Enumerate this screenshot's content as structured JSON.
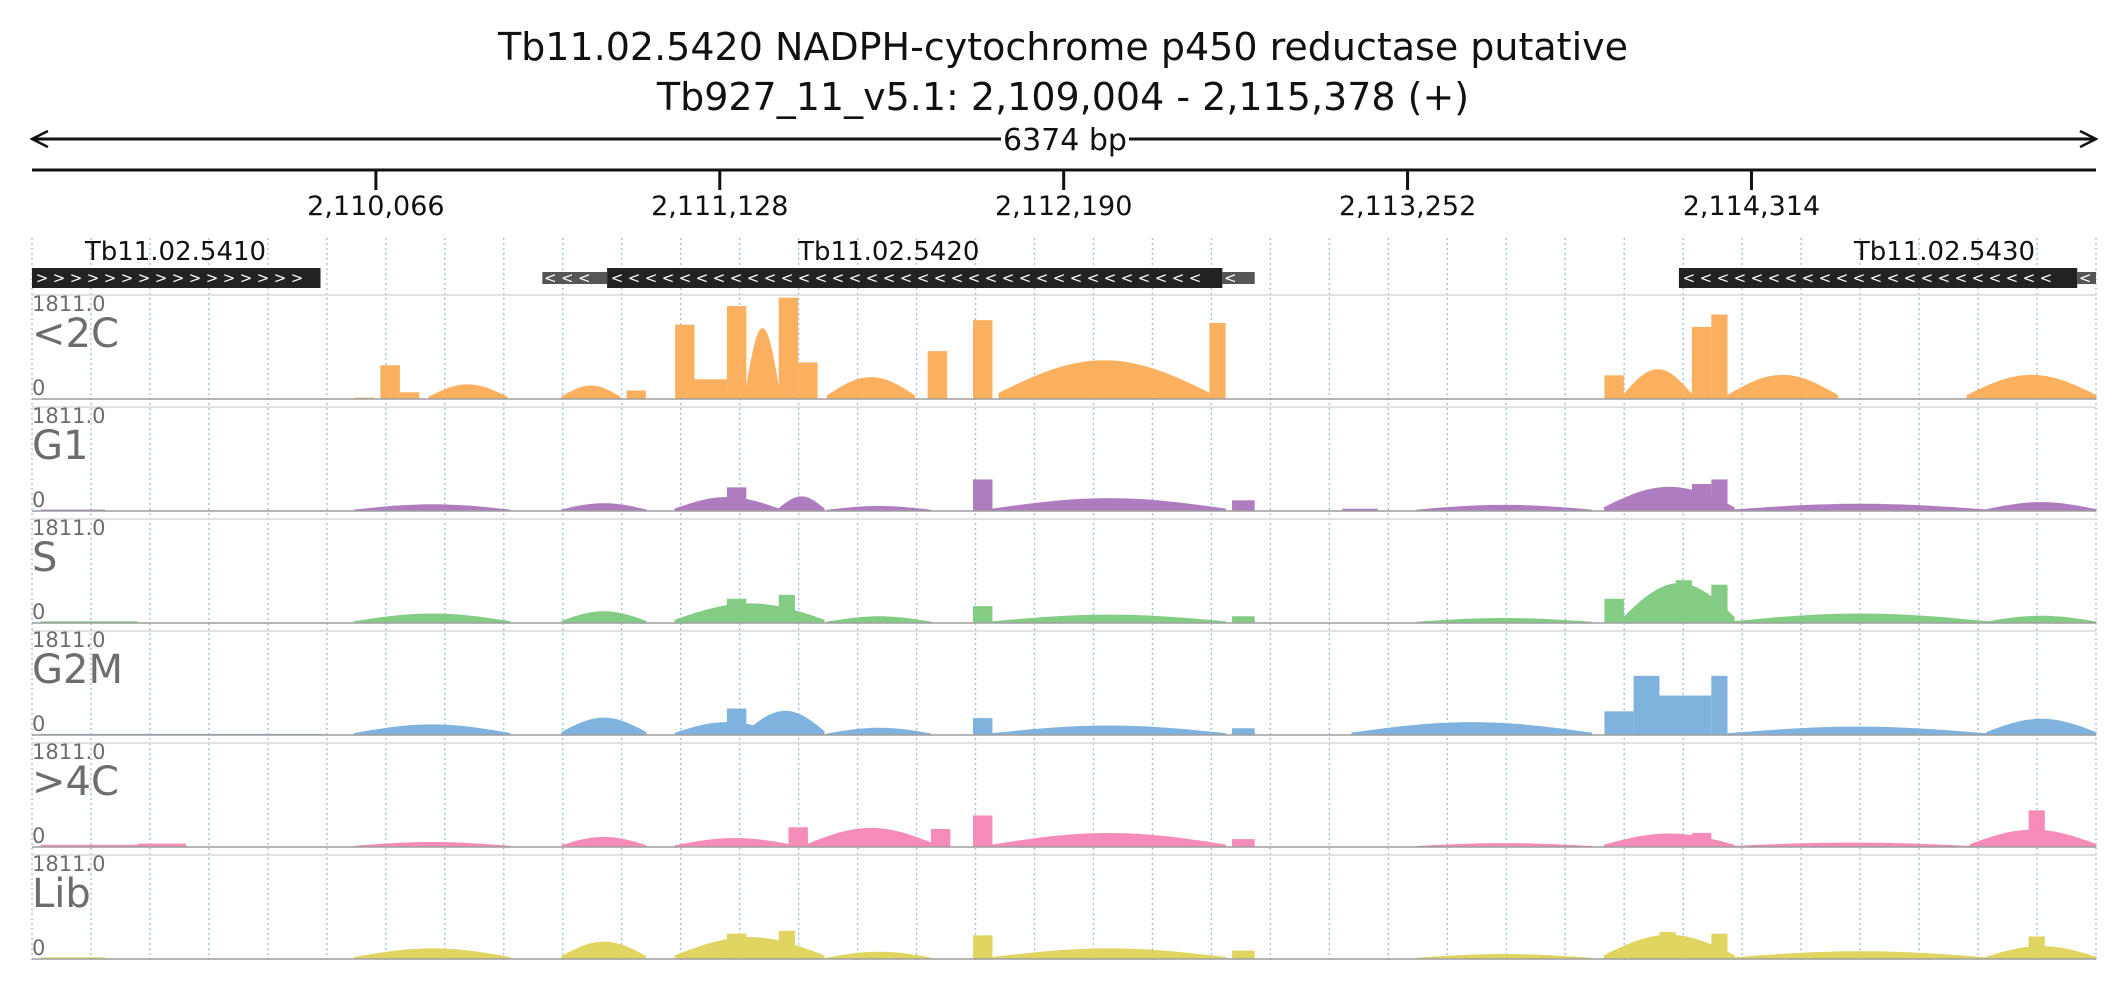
{
  "chart_data": {
    "type": "area",
    "title": "Tb11.02.5420  NADPH-cytochrome p450 reductase  putative",
    "subtitle": "Tb927_11_v5.1: 2,109,004 - 2,115,378 (+)",
    "region": {
      "chromosome": "Tb927_11_v5.1",
      "start": 2109004,
      "end": 2115378,
      "strand": "+"
    },
    "length_label": "6374 bp",
    "ticks": [
      {
        "pos": 2110066,
        "label": "2,110,066"
      },
      {
        "pos": 2111128,
        "label": "2,111,128"
      },
      {
        "pos": 2112190,
        "label": "2,112,190"
      },
      {
        "pos": 2113252,
        "label": "2,113,252"
      },
      {
        "pos": 2114314,
        "label": "2,114,314"
      }
    ],
    "genes": [
      {
        "name": "Tb11.02.5410",
        "strand": "+",
        "start": 2109004,
        "end": 2109895,
        "utr_segments": [],
        "label_pos": 2109447
      },
      {
        "name": "Tb11.02.5420",
        "strand": "-",
        "start": 2110780,
        "end": 2112680,
        "utr_segments": [
          [
            2110580,
            2110780
          ],
          [
            2112680,
            2112780
          ]
        ],
        "label_pos": 2111650
      },
      {
        "name": "Tb11.02.5430",
        "strand": "-",
        "start": 2114090,
        "end": 2115320,
        "utr_segments": [
          [
            2115320,
            2115378
          ]
        ],
        "label_pos": 2114910
      }
    ],
    "y_max": 1811.0,
    "y_max_label": "1811.0",
    "y_min_label": "0",
    "tracks": [
      {
        "name": "<2C",
        "color": "#fbb05f",
        "regions": [
          {
            "x0": 2110000,
            "x1": 2110060,
            "v": 25
          },
          {
            "x0": 2110080,
            "x1": 2110140,
            "v": 600
          },
          {
            "x0": 2110140,
            "x1": 2110200,
            "v": 120
          },
          {
            "x0": 2110230,
            "x1": 2110470,
            "v": 250,
            "shape": "hump"
          },
          {
            "x0": 2110640,
            "x1": 2110820,
            "v": 230,
            "shape": "hump"
          },
          {
            "x0": 2110840,
            "x1": 2110900,
            "v": 150
          },
          {
            "x0": 2110990,
            "x1": 2111050,
            "v": 1320
          },
          {
            "x0": 2111050,
            "x1": 2111150,
            "v": 350
          },
          {
            "x0": 2111150,
            "x1": 2111210,
            "v": 1650
          },
          {
            "x0": 2111210,
            "x1": 2111310,
            "v": 1250,
            "shape": "hump"
          },
          {
            "x0": 2111310,
            "x1": 2111370,
            "v": 1800
          },
          {
            "x0": 2111370,
            "x1": 2111430,
            "v": 650
          },
          {
            "x0": 2111460,
            "x1": 2111730,
            "v": 380,
            "shape": "hump"
          },
          {
            "x0": 2111770,
            "x1": 2111830,
            "v": 850
          },
          {
            "x0": 2111910,
            "x1": 2111970,
            "v": 1400
          },
          {
            "x0": 2111990,
            "x1": 2112640,
            "v": 680,
            "shape": "hump"
          },
          {
            "x0": 2112640,
            "x1": 2112690,
            "v": 1350
          },
          {
            "x0": 2113860,
            "x1": 2113920,
            "v": 420
          },
          {
            "x0": 2113920,
            "x1": 2114130,
            "v": 520,
            "shape": "hump"
          },
          {
            "x0": 2114130,
            "x1": 2114190,
            "v": 1280
          },
          {
            "x0": 2114190,
            "x1": 2114240,
            "v": 1500
          },
          {
            "x0": 2114240,
            "x1": 2114580,
            "v": 420,
            "shape": "hump"
          },
          {
            "x0": 2114980,
            "x1": 2115378,
            "v": 420,
            "shape": "hump"
          }
        ]
      },
      {
        "name": "G1",
        "color": "#b07cc0",
        "regions": [
          {
            "x0": 2109030,
            "x1": 2109230,
            "v": 25
          },
          {
            "x0": 2110000,
            "x1": 2110480,
            "v": 110,
            "shape": "hump"
          },
          {
            "x0": 2110640,
            "x1": 2110900,
            "v": 130,
            "shape": "hump"
          },
          {
            "x0": 2110990,
            "x1": 2111310,
            "v": 240,
            "shape": "hump"
          },
          {
            "x0": 2111150,
            "x1": 2111210,
            "v": 420
          },
          {
            "x0": 2111310,
            "x1": 2111450,
            "v": 250,
            "shape": "hump"
          },
          {
            "x0": 2111460,
            "x1": 2111780,
            "v": 80,
            "shape": "hump"
          },
          {
            "x0": 2111910,
            "x1": 2111970,
            "v": 560
          },
          {
            "x0": 2111970,
            "x1": 2112690,
            "v": 220,
            "shape": "hump"
          },
          {
            "x0": 2112710,
            "x1": 2112780,
            "v": 190
          },
          {
            "x0": 2113050,
            "x1": 2113160,
            "v": 40
          },
          {
            "x0": 2113280,
            "x1": 2113820,
            "v": 100,
            "shape": "hump"
          },
          {
            "x0": 2113860,
            "x1": 2114260,
            "v": 420,
            "shape": "hump"
          },
          {
            "x0": 2114130,
            "x1": 2114190,
            "v": 480
          },
          {
            "x0": 2114190,
            "x1": 2114240,
            "v": 560
          },
          {
            "x0": 2114260,
            "x1": 2115040,
            "v": 120,
            "shape": "hump"
          },
          {
            "x0": 2115040,
            "x1": 2115378,
            "v": 150,
            "shape": "hump"
          }
        ]
      },
      {
        "name": "S",
        "color": "#84cc84",
        "regions": [
          {
            "x0": 2109030,
            "x1": 2109330,
            "v": 30
          },
          {
            "x0": 2110000,
            "x1": 2110480,
            "v": 160,
            "shape": "hump"
          },
          {
            "x0": 2110640,
            "x1": 2110900,
            "v": 200,
            "shape": "hump"
          },
          {
            "x0": 2110990,
            "x1": 2111450,
            "v": 340,
            "shape": "hump"
          },
          {
            "x0": 2111150,
            "x1": 2111210,
            "v": 430
          },
          {
            "x0": 2111310,
            "x1": 2111360,
            "v": 500
          },
          {
            "x0": 2111460,
            "x1": 2111780,
            "v": 110,
            "shape": "hump"
          },
          {
            "x0": 2111910,
            "x1": 2111970,
            "v": 300
          },
          {
            "x0": 2111970,
            "x1": 2112690,
            "v": 140,
            "shape": "hump"
          },
          {
            "x0": 2112710,
            "x1": 2112780,
            "v": 120
          },
          {
            "x0": 2113280,
            "x1": 2113820,
            "v": 80,
            "shape": "hump"
          },
          {
            "x0": 2113860,
            "x1": 2113920,
            "v": 430
          },
          {
            "x0": 2113920,
            "x1": 2114260,
            "v": 700,
            "shape": "hump"
          },
          {
            "x0": 2114080,
            "x1": 2114130,
            "v": 760
          },
          {
            "x0": 2114190,
            "x1": 2114240,
            "v": 680
          },
          {
            "x0": 2114260,
            "x1": 2115040,
            "v": 160,
            "shape": "hump"
          },
          {
            "x0": 2115040,
            "x1": 2115378,
            "v": 120,
            "shape": "hump"
          }
        ]
      },
      {
        "name": "G2M",
        "color": "#7fb3de",
        "regions": [
          {
            "x0": 2109030,
            "x1": 2109900,
            "v": 20
          },
          {
            "x0": 2110000,
            "x1": 2110480,
            "v": 180,
            "shape": "hump"
          },
          {
            "x0": 2110640,
            "x1": 2110900,
            "v": 300,
            "shape": "hump"
          },
          {
            "x0": 2110990,
            "x1": 2111310,
            "v": 220,
            "shape": "hump"
          },
          {
            "x0": 2111150,
            "x1": 2111210,
            "v": 470
          },
          {
            "x0": 2111210,
            "x1": 2111450,
            "v": 420,
            "shape": "hump"
          },
          {
            "x0": 2111460,
            "x1": 2111780,
            "v": 120,
            "shape": "hump"
          },
          {
            "x0": 2111910,
            "x1": 2111970,
            "v": 300
          },
          {
            "x0": 2111970,
            "x1": 2112690,
            "v": 160,
            "shape": "hump"
          },
          {
            "x0": 2112710,
            "x1": 2112780,
            "v": 120
          },
          {
            "x0": 2113080,
            "x1": 2113820,
            "v": 220,
            "shape": "hump"
          },
          {
            "x0": 2113860,
            "x1": 2113950,
            "v": 420
          },
          {
            "x0": 2113950,
            "x1": 2114030,
            "v": 1050
          },
          {
            "x0": 2114030,
            "x1": 2114190,
            "v": 700
          },
          {
            "x0": 2114190,
            "x1": 2114240,
            "v": 1050
          },
          {
            "x0": 2114240,
            "x1": 2115040,
            "v": 140,
            "shape": "hump"
          },
          {
            "x0": 2115040,
            "x1": 2115378,
            "v": 280,
            "shape": "hump"
          }
        ]
      },
      {
        "name": ">4C",
        "color": "#f58bb8",
        "regions": [
          {
            "x0": 2109030,
            "x1": 2109330,
            "v": 40
          },
          {
            "x0": 2109330,
            "x1": 2109480,
            "v": 60
          },
          {
            "x0": 2110000,
            "x1": 2110480,
            "v": 80,
            "shape": "hump"
          },
          {
            "x0": 2110640,
            "x1": 2110900,
            "v": 170,
            "shape": "hump"
          },
          {
            "x0": 2110990,
            "x1": 2111360,
            "v": 150,
            "shape": "hump"
          },
          {
            "x0": 2111340,
            "x1": 2111400,
            "v": 350
          },
          {
            "x0": 2111400,
            "x1": 2111790,
            "v": 330,
            "shape": "hump"
          },
          {
            "x0": 2111780,
            "x1": 2111840,
            "v": 320
          },
          {
            "x0": 2111910,
            "x1": 2111970,
            "v": 560
          },
          {
            "x0": 2111970,
            "x1": 2112690,
            "v": 240,
            "shape": "hump"
          },
          {
            "x0": 2112710,
            "x1": 2112780,
            "v": 140
          },
          {
            "x0": 2113280,
            "x1": 2113820,
            "v": 60,
            "shape": "hump"
          },
          {
            "x0": 2113860,
            "x1": 2114260,
            "v": 230,
            "shape": "hump"
          },
          {
            "x0": 2114130,
            "x1": 2114190,
            "v": 250
          },
          {
            "x0": 2114260,
            "x1": 2114990,
            "v": 70,
            "shape": "hump"
          },
          {
            "x0": 2114990,
            "x1": 2115378,
            "v": 300,
            "shape": "hump"
          },
          {
            "x0": 2115170,
            "x1": 2115220,
            "v": 650
          }
        ]
      },
      {
        "name": "Lib",
        "color": "#dfd560",
        "regions": [
          {
            "x0": 2109030,
            "x1": 2109230,
            "v": 30
          },
          {
            "x0": 2110000,
            "x1": 2110480,
            "v": 180,
            "shape": "hump"
          },
          {
            "x0": 2110640,
            "x1": 2110900,
            "v": 300,
            "shape": "hump"
          },
          {
            "x0": 2110990,
            "x1": 2111450,
            "v": 380,
            "shape": "hump"
          },
          {
            "x0": 2111150,
            "x1": 2111210,
            "v": 450
          },
          {
            "x0": 2111310,
            "x1": 2111360,
            "v": 500
          },
          {
            "x0": 2111460,
            "x1": 2111780,
            "v": 120,
            "shape": "hump"
          },
          {
            "x0": 2111910,
            "x1": 2111970,
            "v": 420
          },
          {
            "x0": 2111970,
            "x1": 2112690,
            "v": 180,
            "shape": "hump"
          },
          {
            "x0": 2112710,
            "x1": 2112780,
            "v": 150
          },
          {
            "x0": 2113280,
            "x1": 2113820,
            "v": 80,
            "shape": "hump"
          },
          {
            "x0": 2113860,
            "x1": 2114260,
            "v": 420,
            "shape": "hump"
          },
          {
            "x0": 2114030,
            "x1": 2114080,
            "v": 480
          },
          {
            "x0": 2114190,
            "x1": 2114240,
            "v": 450
          },
          {
            "x0": 2114260,
            "x1": 2115040,
            "v": 130,
            "shape": "hump"
          },
          {
            "x0": 2115040,
            "x1": 2115378,
            "v": 220,
            "shape": "hump"
          },
          {
            "x0": 2115170,
            "x1": 2115220,
            "v": 400
          }
        ]
      }
    ]
  }
}
